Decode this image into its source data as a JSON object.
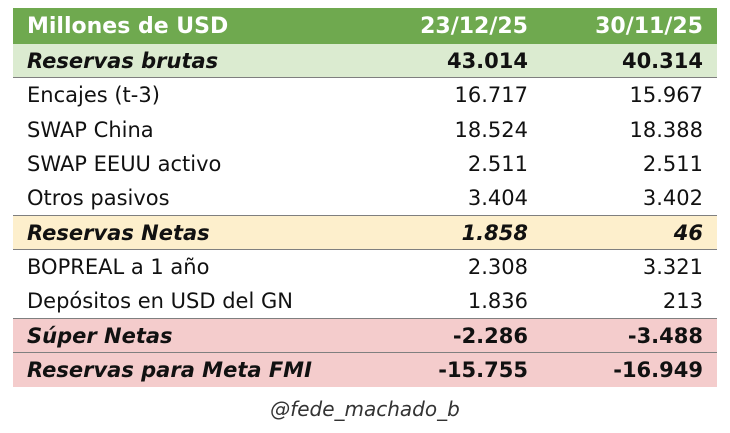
{
  "header": {
    "label": "Millones de USD",
    "date1": "23/12/25",
    "date2": "30/11/25"
  },
  "rows": [
    {
      "label": "Reservas brutas",
      "v1": "43.014",
      "v2": "40.314"
    },
    {
      "label": "Encajes (t-3)",
      "v1": "16.717",
      "v2": "15.967"
    },
    {
      "label": "SWAP China",
      "v1": "18.524",
      "v2": "18.388"
    },
    {
      "label": "SWAP EEUU activo",
      "v1": "2.511",
      "v2": "2.511"
    },
    {
      "label": "Otros pasivos",
      "v1": "3.404",
      "v2": "3.402"
    },
    {
      "label": "Reservas Netas",
      "v1": "1.858",
      "v2": "46"
    },
    {
      "label": "BOPREAL a 1 año",
      "v1": "2.308",
      "v2": "3.321"
    },
    {
      "label": "Depósitos en USD del GN",
      "v1": "1.836",
      "v2": "213"
    },
    {
      "label": "Súper Netas",
      "v1": "-2.286",
      "v2": "-3.488"
    },
    {
      "label": "Reservas para Meta FMI",
      "v1": "-15.755",
      "v2": "-16.949"
    }
  ],
  "footer": {
    "credit": "@fede_machado_b"
  },
  "colors": {
    "header_bg": "#6fa94f",
    "gross_bg": "#dbebd0",
    "net_bg": "#fdefcc",
    "super_net_bg": "#f4cccc"
  }
}
